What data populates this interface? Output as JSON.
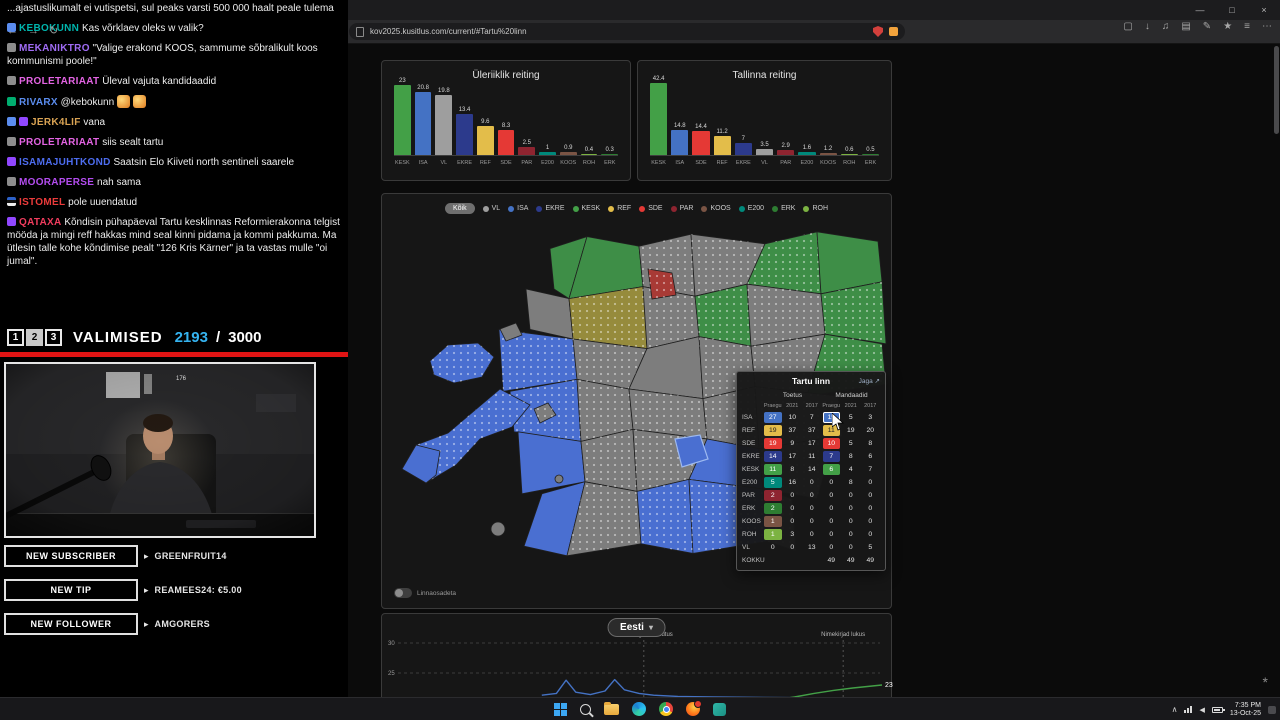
{
  "party_colors": {
    "KESK": "#43a047",
    "ISA": "#4472c4",
    "VL": "#9e9e9e",
    "EKRE": "#2c3a8c",
    "REF": "#e3bd4a",
    "SDE": "#e53935",
    "PAR": "#8e2430",
    "E200": "#00897b",
    "KOOS": "#7a5444",
    "ROH": "#7cb342",
    "ERK": "#2e7d32"
  },
  "browser": {
    "url": "kov2025.kusitlus.com/current/#Tartu%20linn",
    "window_controls": {
      "minimize": "—",
      "maximize": "□",
      "close": "×"
    },
    "nav": {
      "back": "←",
      "forward": "→",
      "reload": "↻"
    },
    "toolbar_icons": [
      "▢",
      "↓",
      "♫",
      "▤",
      "✎",
      "★",
      "≡",
      "⋯"
    ],
    "float_icon": "*"
  },
  "stream": {
    "chat_messages": [
      {
        "user": null,
        "color": null,
        "badges": [],
        "text": "...ajastuslikumalt ei vutispetsi, sul peaks varsti 500 000 haalt peale tulema"
      },
      {
        "user": "KEBOKUNN",
        "color": "#00b5ad",
        "badges": [
          "#5b8def"
        ],
        "text": "Kas võrklaev oleks w valik?"
      },
      {
        "user": "MEKANIKTRO",
        "color": "#a06cf5",
        "badges": [
          "#8d8d8d"
        ],
        "text": "\"Valige erakond KOOS, sammume sõbralikult koos kommunismi poole!\""
      },
      {
        "user": "PROLETARIAAT",
        "color": "#e464e4",
        "badges": [
          "#8d8d8d"
        ],
        "text": "Üleval vajuta kandidaadid"
      },
      {
        "user": "RIVARX",
        "color": "#5b8def",
        "badges": [
          "#00ad6f"
        ],
        "text": "@kebokunn",
        "emotes": 2
      },
      {
        "user": "JERK4LIF",
        "color": "#d9a353",
        "badges": [
          "#5b8def",
          "#9147ff"
        ],
        "text": "vana"
      },
      {
        "user": "PROLETARIAAT",
        "color": "#e464e4",
        "badges": [
          "#8d8d8d"
        ],
        "text": "siis sealt tartu"
      },
      {
        "user": "ISAMAJUHTKOND",
        "color": "#4d6df0",
        "badges": [
          "#9147ff"
        ],
        "text": "Saatsin Elo Kiiveti north sentineli saarele"
      },
      {
        "user": "MOORAPERSE",
        "color": "#b44df0",
        "badges": [
          "#8d8d8d"
        ],
        "text": "nah sama"
      },
      {
        "user": "ISTOMEL",
        "color": "#eb3b3b",
        "badges": [
          "flag"
        ],
        "text": "pole uuendatud"
      },
      {
        "user": "QATAXA",
        "color": "#f23d5e",
        "badges": [
          "#9147ff"
        ],
        "text": "Kõndisin pühapäeval Tartu kesklinnas Reformierakonna telgist mööda ja mingi reff hakkas mind seal kinni pidama ja kommi pakkuma. Ma ütlesin talle kohe kõndimise pealt \"126 Kris Kärner\" ja ta vastas mulle \"oi jumal\"."
      }
    ],
    "banner": {
      "slots": [
        "1",
        "2",
        "3"
      ],
      "active_slot": "2",
      "title": "VALIMISED",
      "count": "2193",
      "divider": "/",
      "total": "3000",
      "count_color": "#35b3f0"
    },
    "webcam_label": "176",
    "alerts": [
      {
        "label": "NEW SUBSCRIBER",
        "arrow": "▸",
        "value": "GREENFRUIT14"
      },
      {
        "label": "NEW TIP",
        "arrow": "▸",
        "value": "REAMEES24: €5.00"
      },
      {
        "label": "NEW FOLLOWER",
        "arrow": "▸",
        "value": "AMGORERS"
      }
    ]
  },
  "page": {
    "legend": {
      "all": "Kõik",
      "parties": [
        "VL",
        "ISA",
        "EKRE",
        "KESK",
        "REF",
        "SDE",
        "PAR",
        "KOOS",
        "E200",
        "ERK",
        "ROH"
      ]
    },
    "map_toggle_label": "Linnaosadeta",
    "too_small_note": "",
    "tooltip": {
      "title": "Tartu linn",
      "share": "Jaga",
      "share_icon": "↗",
      "groups": [
        "Toetus",
        "Mandaadid"
      ],
      "columns": [
        "Praegu",
        "2021",
        "2017",
        "Praegu",
        "2021",
        "2017"
      ],
      "rows": [
        {
          "party": "ISA",
          "values": [
            27,
            10,
            7,
            15,
            5,
            3
          ]
        },
        {
          "party": "REF",
          "values": [
            19,
            37,
            37,
            11,
            19,
            20
          ]
        },
        {
          "party": "SDE",
          "values": [
            19,
            9,
            17,
            10,
            5,
            8
          ]
        },
        {
          "party": "EKRE",
          "values": [
            14,
            17,
            11,
            7,
            8,
            6
          ]
        },
        {
          "party": "KESK",
          "values": [
            11,
            8,
            14,
            6,
            4,
            7
          ]
        },
        {
          "party": "E200",
          "values": [
            5,
            16,
            0,
            0,
            8,
            0
          ]
        },
        {
          "party": "PAR",
          "values": [
            2,
            0,
            0,
            0,
            0,
            0
          ]
        },
        {
          "party": "ERK",
          "values": [
            2,
            0,
            0,
            0,
            0,
            0
          ]
        },
        {
          "party": "KOOS",
          "values": [
            1,
            0,
            0,
            0,
            0,
            0
          ]
        },
        {
          "party": "ROH",
          "values": [
            1,
            3,
            0,
            0,
            0,
            0
          ]
        },
        {
          "party": "VL",
          "values": [
            0,
            0,
            13,
            0,
            0,
            5
          ]
        }
      ],
      "total": {
        "label": "KOKKU",
        "values": [
          "",
          "",
          "",
          "49",
          "49",
          "49"
        ]
      }
    },
    "region_selector": "Eesti",
    "region_caret": "▾"
  },
  "taskbar": {
    "time": "7:35 PM",
    "date": "13-Oct-25",
    "tray_arrow": "∧",
    "volume_icon": "◀"
  },
  "chart_data": [
    {
      "type": "bar",
      "title": "Üleriiklik reiting",
      "categories": [
        "KESK",
        "ISA",
        "VL",
        "EKRE",
        "REF",
        "SDE",
        "PAR",
        "E200",
        "KOOS",
        "ROH",
        "ERK"
      ],
      "values": [
        23,
        20.8,
        19.8,
        13.4,
        9.6,
        8.3,
        2.5,
        1,
        0.9,
        0.4,
        0.3
      ],
      "xlabel": "",
      "ylabel": "",
      "ylim": [
        0,
        25
      ],
      "grid": false,
      "legend_position": "none"
    },
    {
      "type": "bar",
      "title": "Tallinna reiting",
      "categories": [
        "KESK",
        "ISA",
        "SDE",
        "REF",
        "EKRE",
        "VL",
        "PAR",
        "E200",
        "KOOS",
        "ROH",
        "ERK"
      ],
      "values": [
        42.4,
        14.8,
        14.4,
        11.2,
        7,
        3.5,
        2.9,
        1.6,
        1.2,
        0.6,
        0.5
      ],
      "xlabel": "",
      "ylabel": "",
      "ylim": [
        0,
        45
      ],
      "grid": false,
      "legend_position": "none"
    },
    {
      "type": "line",
      "title": "Eesti",
      "yticks": [
        30,
        25
      ],
      "x_range": [
        0,
        100
      ],
      "annotations": [
        {
          "label": "Valimisõiguse muutus",
          "x": 51
        },
        {
          "label": "Nimekirjad lukus",
          "x": 92
        }
      ],
      "series": [
        {
          "name": "ISA",
          "color": "#4472c4",
          "points": [
            [
              30,
              21.3
            ],
            [
              33,
              21.6
            ],
            [
              35,
              23.8
            ],
            [
              37,
              21.8
            ],
            [
              40,
              21.4
            ],
            [
              43,
              22.0
            ],
            [
              45,
              23.9
            ],
            [
              47,
              22.2
            ],
            [
              50,
              21.6
            ],
            [
              53,
              21.3
            ],
            [
              58,
              21.1
            ],
            [
              65,
              21.0
            ],
            [
              80,
              20.9
            ],
            [
              100,
              20.8
            ]
          ]
        },
        {
          "name": "KESK",
          "color": "#43a047",
          "points": [
            [
              78,
              20.5
            ],
            [
              82,
              21
            ],
            [
              86,
              21.6
            ],
            [
              90,
              22.1
            ],
            [
              94,
              22.5
            ],
            [
              100,
              23
            ]
          ],
          "end_label": "23"
        }
      ]
    }
  ],
  "map_cells": {
    "cols": [
      15,
      75,
      135,
      195,
      255,
      315,
      375,
      435,
      504
    ],
    "rows": [
      28,
      78,
      128,
      178,
      228,
      278,
      340
    ],
    "grid": [
      [
        "",
        "",
        "g",
        "g",
        "dv",
        "dv",
        "dg",
        "g"
      ],
      [
        "",
        "",
        "v",
        "dy",
        "dv",
        "dg",
        "dv",
        "dg"
      ],
      [
        "",
        "",
        "db",
        "dv",
        "v",
        "dv",
        "dv",
        "dg"
      ],
      [
        "",
        "",
        "db",
        "dv",
        "dv",
        "dv",
        "dv",
        ""
      ],
      [
        "",
        "",
        "b",
        "dv",
        "dv",
        "b",
        "dv",
        ""
      ],
      [
        "",
        "",
        "b",
        "dv",
        "db",
        "db",
        "dv",
        ""
      ]
    ],
    "left_edge": [
      178,
      150,
      119,
      126,
      130,
      150
    ],
    "right_edge": [
      504,
      504,
      500,
      452,
      445,
      420
    ]
  }
}
